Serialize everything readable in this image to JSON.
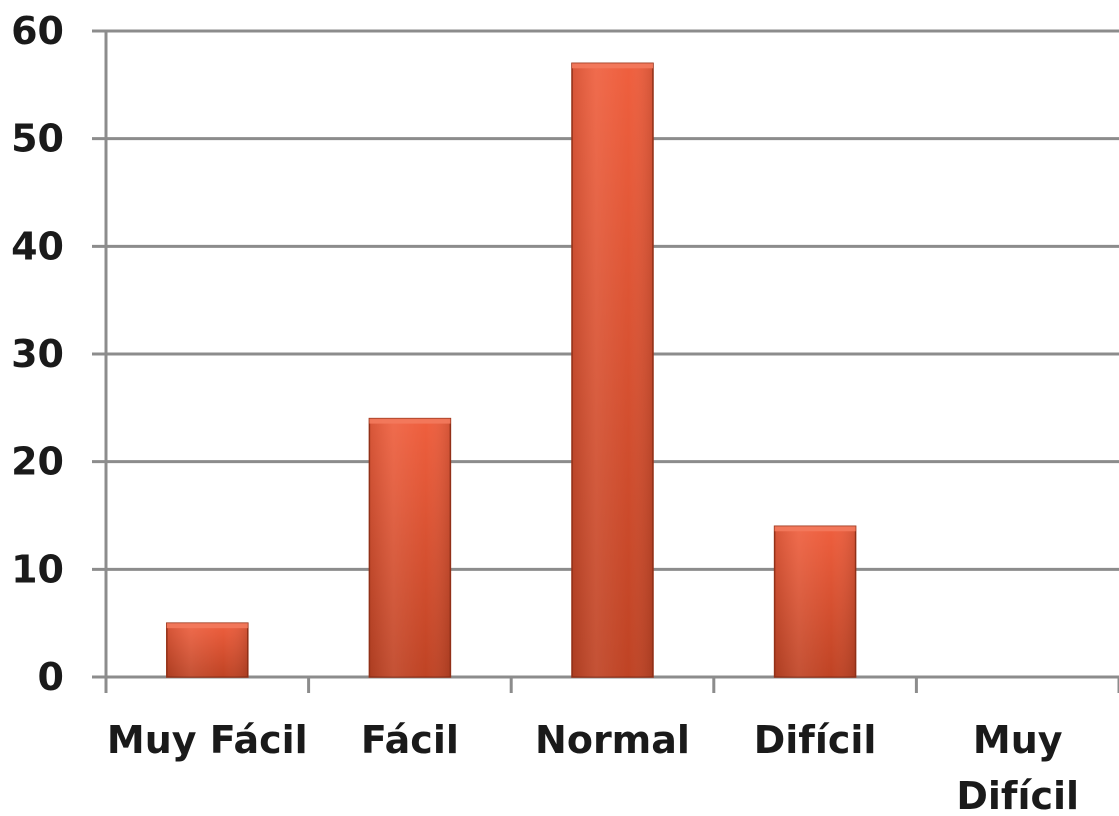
{
  "chart_data": {
    "type": "bar",
    "categories": [
      [
        "Muy Fácil"
      ],
      [
        "Fácil"
      ],
      [
        "Normal"
      ],
      [
        "Difícil"
      ],
      [
        "Muy",
        "Difícil"
      ]
    ],
    "values": [
      5,
      24,
      57,
      14,
      0
    ],
    "title": "",
    "xlabel": "",
    "ylabel": "",
    "ylim": [
      0,
      60
    ],
    "yticks": [
      0,
      10,
      20,
      30,
      40,
      50,
      60
    ],
    "grid": true,
    "legend": "none",
    "colors": {
      "bar_top": "#ef5f3e",
      "bar_bottom": "#bf4324",
      "bar_edge": "#9a3319",
      "grid": "#8c8c8c",
      "axis": "#8c8c8c"
    }
  }
}
